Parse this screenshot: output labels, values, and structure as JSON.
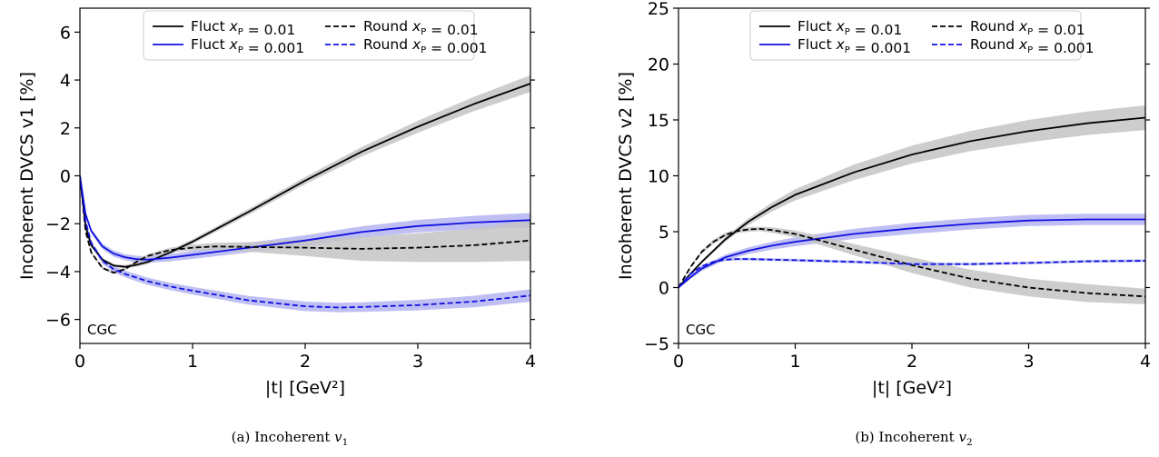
{
  "chart_data": [
    {
      "type": "line",
      "caption": "(a) Incoherent v1",
      "annotation": "CGC",
      "xlabel": "|t| [GeV²]",
      "ylabel": "Incoherent DVCS v1 [%]",
      "xlim": [
        0,
        4
      ],
      "ylim": [
        -7,
        7
      ],
      "xticks": [
        0,
        1,
        2,
        3,
        4
      ],
      "yticks": [
        -6,
        -4,
        -2,
        0,
        2,
        4,
        6
      ],
      "ytick_labels": [
        "−6",
        "−4",
        "−2",
        "0",
        "2",
        "4",
        "6"
      ],
      "legend": "top",
      "grid": false,
      "series": [
        {
          "name": "Fluct x_P = 0.01",
          "color": "#000000",
          "dash": "solid",
          "band": "#c4c4c4",
          "x": [
            0,
            0.05,
            0.1,
            0.2,
            0.3,
            0.4,
            0.5,
            0.6,
            0.8,
            1.0,
            1.5,
            2.0,
            2.5,
            3.0,
            3.5,
            4.0
          ],
          "y": [
            0,
            -2.1,
            -2.9,
            -3.5,
            -3.75,
            -3.8,
            -3.72,
            -3.6,
            -3.2,
            -2.75,
            -1.5,
            -0.2,
            1.0,
            2.05,
            3.0,
            3.85
          ],
          "err": [
            0,
            0.05,
            0.05,
            0.05,
            0.06,
            0.07,
            0.08,
            0.09,
            0.1,
            0.1,
            0.12,
            0.15,
            0.2,
            0.25,
            0.3,
            0.35
          ]
        },
        {
          "name": "Fluct x_P = 0.001",
          "color": "#1010e0",
          "dash": "solid",
          "band": "#b4b4f2",
          "x": [
            0,
            0.05,
            0.1,
            0.2,
            0.3,
            0.4,
            0.5,
            0.6,
            0.8,
            1.0,
            1.5,
            2.0,
            2.5,
            3.0,
            3.5,
            4.0
          ],
          "y": [
            0,
            -1.6,
            -2.3,
            -2.95,
            -3.25,
            -3.4,
            -3.48,
            -3.5,
            -3.42,
            -3.3,
            -3.0,
            -2.7,
            -2.35,
            -2.1,
            -1.95,
            -1.85
          ],
          "err": [
            0,
            0.1,
            0.1,
            0.12,
            0.13,
            0.13,
            0.14,
            0.14,
            0.15,
            0.17,
            0.2,
            0.22,
            0.24,
            0.26,
            0.28,
            0.3
          ]
        },
        {
          "name": "Round x_P = 0.01",
          "color": "#000000",
          "dash": "dashed",
          "band": "#c4c4c4",
          "x": [
            0,
            0.05,
            0.1,
            0.2,
            0.3,
            0.4,
            0.5,
            0.6,
            0.8,
            1.0,
            1.2,
            1.5,
            2.0,
            2.5,
            3.0,
            3.5,
            4.0
          ],
          "y": [
            0,
            -2.3,
            -3.2,
            -3.85,
            -4.05,
            -3.9,
            -3.6,
            -3.35,
            -3.1,
            -3.0,
            -2.95,
            -2.97,
            -3.0,
            -3.05,
            -3.0,
            -2.9,
            -2.7
          ],
          "err": [
            0,
            0.05,
            0.05,
            0.06,
            0.06,
            0.06,
            0.07,
            0.08,
            0.1,
            0.12,
            0.15,
            0.2,
            0.35,
            0.5,
            0.6,
            0.7,
            0.85
          ]
        },
        {
          "name": "Round x_P = 0.001",
          "color": "#1010e0",
          "dash": "dashed",
          "band": "#b4b4f2",
          "x": [
            0,
            0.05,
            0.1,
            0.2,
            0.3,
            0.4,
            0.5,
            0.6,
            0.8,
            1.0,
            1.5,
            2.0,
            2.3,
            2.5,
            3.0,
            3.5,
            4.0
          ],
          "y": [
            0,
            -1.9,
            -2.8,
            -3.55,
            -3.9,
            -4.1,
            -4.25,
            -4.4,
            -4.62,
            -4.8,
            -5.2,
            -5.45,
            -5.5,
            -5.48,
            -5.4,
            -5.25,
            -5.0
          ],
          "err": [
            0,
            0.1,
            0.1,
            0.12,
            0.13,
            0.14,
            0.15,
            0.15,
            0.15,
            0.16,
            0.18,
            0.2,
            0.2,
            0.2,
            0.22,
            0.24,
            0.26
          ]
        }
      ]
    },
    {
      "type": "line",
      "caption": "(b) Incoherent v2",
      "annotation": "CGC",
      "xlabel": "|t| [GeV²]",
      "ylabel": "Incoherent DVCS  v2 [%]",
      "xlim": [
        0,
        4
      ],
      "ylim": [
        -5,
        25
      ],
      "xticks": [
        0,
        1,
        2,
        3,
        4
      ],
      "yticks": [
        -5,
        0,
        5,
        10,
        15,
        20,
        25
      ],
      "ytick_labels": [
        "−5",
        "0",
        "5",
        "10",
        "15",
        "20",
        "25"
      ],
      "legend": "top",
      "grid": false,
      "series": [
        {
          "name": "Fluct x_P = 0.01",
          "color": "#000000",
          "dash": "solid",
          "band": "#c4c4c4",
          "x": [
            0,
            0.1,
            0.2,
            0.4,
            0.6,
            0.8,
            1.0,
            1.5,
            2.0,
            2.5,
            3.0,
            3.5,
            4.0
          ],
          "y": [
            0,
            1.2,
            2.3,
            4.3,
            5.9,
            7.2,
            8.3,
            10.3,
            11.9,
            13.1,
            14.0,
            14.7,
            15.2
          ],
          "err": [
            0,
            0.1,
            0.1,
            0.2,
            0.3,
            0.4,
            0.5,
            0.7,
            0.8,
            0.9,
            1.0,
            1.05,
            1.1
          ]
        },
        {
          "name": "Fluct x_P = 0.001",
          "color": "#1010e0",
          "dash": "solid",
          "band": "#b4b4f2",
          "x": [
            0,
            0.1,
            0.2,
            0.4,
            0.6,
            0.8,
            1.0,
            1.5,
            2.0,
            2.5,
            3.0,
            3.5,
            4.0
          ],
          "y": [
            0,
            0.9,
            1.7,
            2.7,
            3.3,
            3.75,
            4.1,
            4.8,
            5.3,
            5.7,
            6.0,
            6.1,
            6.1
          ],
          "err": [
            0,
            0.15,
            0.2,
            0.25,
            0.3,
            0.35,
            0.4,
            0.45,
            0.5,
            0.5,
            0.5,
            0.5,
            0.5
          ]
        },
        {
          "name": "Round x_P = 0.01",
          "color": "#000000",
          "dash": "dashed",
          "band": "#c4c4c4",
          "x": [
            0,
            0.1,
            0.2,
            0.3,
            0.4,
            0.5,
            0.6,
            0.7,
            0.8,
            1.0,
            1.2,
            1.5,
            2.0,
            2.5,
            3.0,
            3.5,
            4.0
          ],
          "y": [
            0,
            1.8,
            3.2,
            4.1,
            4.7,
            5.05,
            5.2,
            5.25,
            5.15,
            4.8,
            4.25,
            3.4,
            2.0,
            0.8,
            0.0,
            -0.5,
            -0.8
          ],
          "err": [
            0,
            0.1,
            0.15,
            0.2,
            0.2,
            0.2,
            0.2,
            0.2,
            0.25,
            0.3,
            0.4,
            0.5,
            0.7,
            0.8,
            0.8,
            0.8,
            0.7
          ]
        },
        {
          "name": "Round x_P = 0.001",
          "color": "#1010e0",
          "dash": "dashed",
          "band": "#b4b4f2",
          "x": [
            0,
            0.1,
            0.2,
            0.3,
            0.4,
            0.5,
            0.6,
            0.8,
            1.0,
            1.5,
            2.0,
            2.5,
            3.0,
            3.5,
            4.0
          ],
          "y": [
            0,
            1.2,
            1.9,
            2.3,
            2.5,
            2.55,
            2.55,
            2.5,
            2.45,
            2.3,
            2.1,
            2.1,
            2.2,
            2.35,
            2.4
          ],
          "err": [
            0,
            0.1,
            0.1,
            0.12,
            0.12,
            0.12,
            0.12,
            0.12,
            0.12,
            0.12,
            0.12,
            0.12,
            0.12,
            0.12,
            0.12
          ]
        }
      ]
    }
  ]
}
